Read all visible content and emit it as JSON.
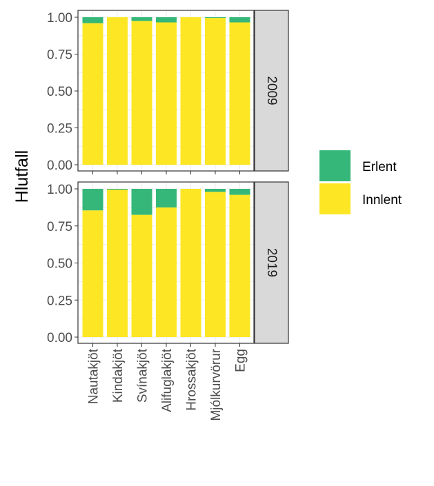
{
  "chart_data": {
    "type": "bar",
    "stacked": true,
    "ylabel": "Hlutfall",
    "xlabel": "",
    "ylim": [
      0,
      1
    ],
    "yticks": [
      "0.00",
      "0.25",
      "0.50",
      "0.75",
      "1.00"
    ],
    "categories": [
      "Nautakjöt",
      "Kindakjöt",
      "Svínakjöt",
      "Alifuglakjöt",
      "Hrossakjöt",
      "Mjólkurvörur",
      "Egg"
    ],
    "legend": [
      {
        "name": "Erlent",
        "color": "#35b779"
      },
      {
        "name": "Innlent",
        "color": "#fde725"
      }
    ],
    "facets": [
      {
        "label": "2009",
        "series": [
          {
            "name": "Innlent",
            "values": [
              0.96,
              1.0,
              0.975,
              0.965,
              1.0,
              0.995,
              0.965
            ]
          },
          {
            "name": "Erlent",
            "values": [
              0.04,
              0.0,
              0.025,
              0.035,
              0.0,
              0.005,
              0.035
            ]
          }
        ]
      },
      {
        "label": "2019",
        "series": [
          {
            "name": "Innlent",
            "values": [
              0.855,
              0.995,
              0.825,
              0.875,
              1.0,
              0.98,
              0.96
            ]
          },
          {
            "name": "Erlent",
            "values": [
              0.145,
              0.005,
              0.175,
              0.125,
              0.0,
              0.02,
              0.04
            ]
          }
        ]
      }
    ]
  }
}
